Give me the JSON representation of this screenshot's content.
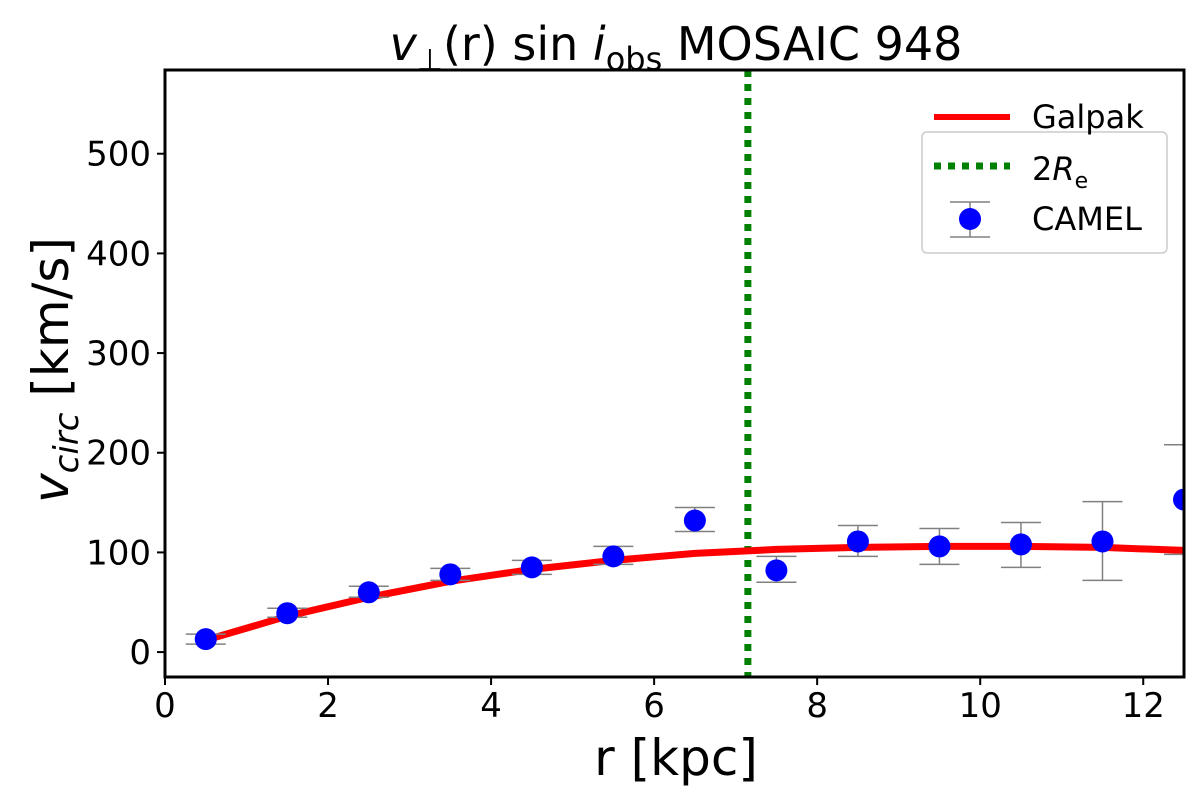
{
  "chart_data": {
    "type": "scatter",
    "title": {
      "main": "v",
      "sub_perp": "⊥",
      "mid": "(r) sin ",
      "i": "i",
      "sub_obs": "obs",
      "rest": " MOSAIC 948"
    },
    "xlabel": "r [kpc]",
    "ylabel": {
      "v": "v",
      "sub": "circ",
      "unit": " [km/s]"
    },
    "xlim": [
      0,
      12.5
    ],
    "ylim": [
      -25,
      584
    ],
    "xticks": [
      0,
      2,
      4,
      6,
      8,
      10,
      12
    ],
    "yticks": [
      0,
      100,
      200,
      300,
      400,
      500
    ],
    "grid": false,
    "legend_placement": "top-right",
    "colors": {
      "galpak": "#ff0000",
      "re": "#008000",
      "camel": "#0000ff",
      "errorbar": "#808080"
    },
    "series": [
      {
        "name": "Galpak",
        "kind": "line",
        "x": [
          0.5,
          1.5,
          2.5,
          3.5,
          4.5,
          5.5,
          6.5,
          7.5,
          8.5,
          9.5,
          10.5,
          11.5,
          12.5
        ],
        "y": [
          12,
          36,
          55,
          71,
          83,
          92,
          99,
          103,
          105,
          106,
          106,
          105,
          102
        ]
      },
      {
        "name": "CAMEL",
        "kind": "errorbar",
        "x": [
          0.5,
          1.5,
          2.5,
          3.5,
          4.5,
          5.5,
          6.5,
          7.5,
          8.5,
          9.5,
          10.5,
          11.5,
          12.5
        ],
        "y": [
          13,
          39,
          60,
          78,
          85,
          96,
          132,
          82,
          111,
          106,
          108,
          111,
          153
        ],
        "ylow": [
          8,
          35,
          55,
          72,
          78,
          88,
          121,
          70,
          96,
          88,
          85,
          72,
          98
        ],
        "yhigh": [
          18,
          44,
          66,
          84,
          92,
          106,
          145,
          96,
          127,
          124,
          130,
          151,
          208
        ]
      }
    ],
    "vline": {
      "name_prefix": "2",
      "name_R": "R",
      "name_sub": "e",
      "x": 7.15
    },
    "legend": {
      "galpak": "Galpak",
      "camel": "CAMEL"
    }
  }
}
